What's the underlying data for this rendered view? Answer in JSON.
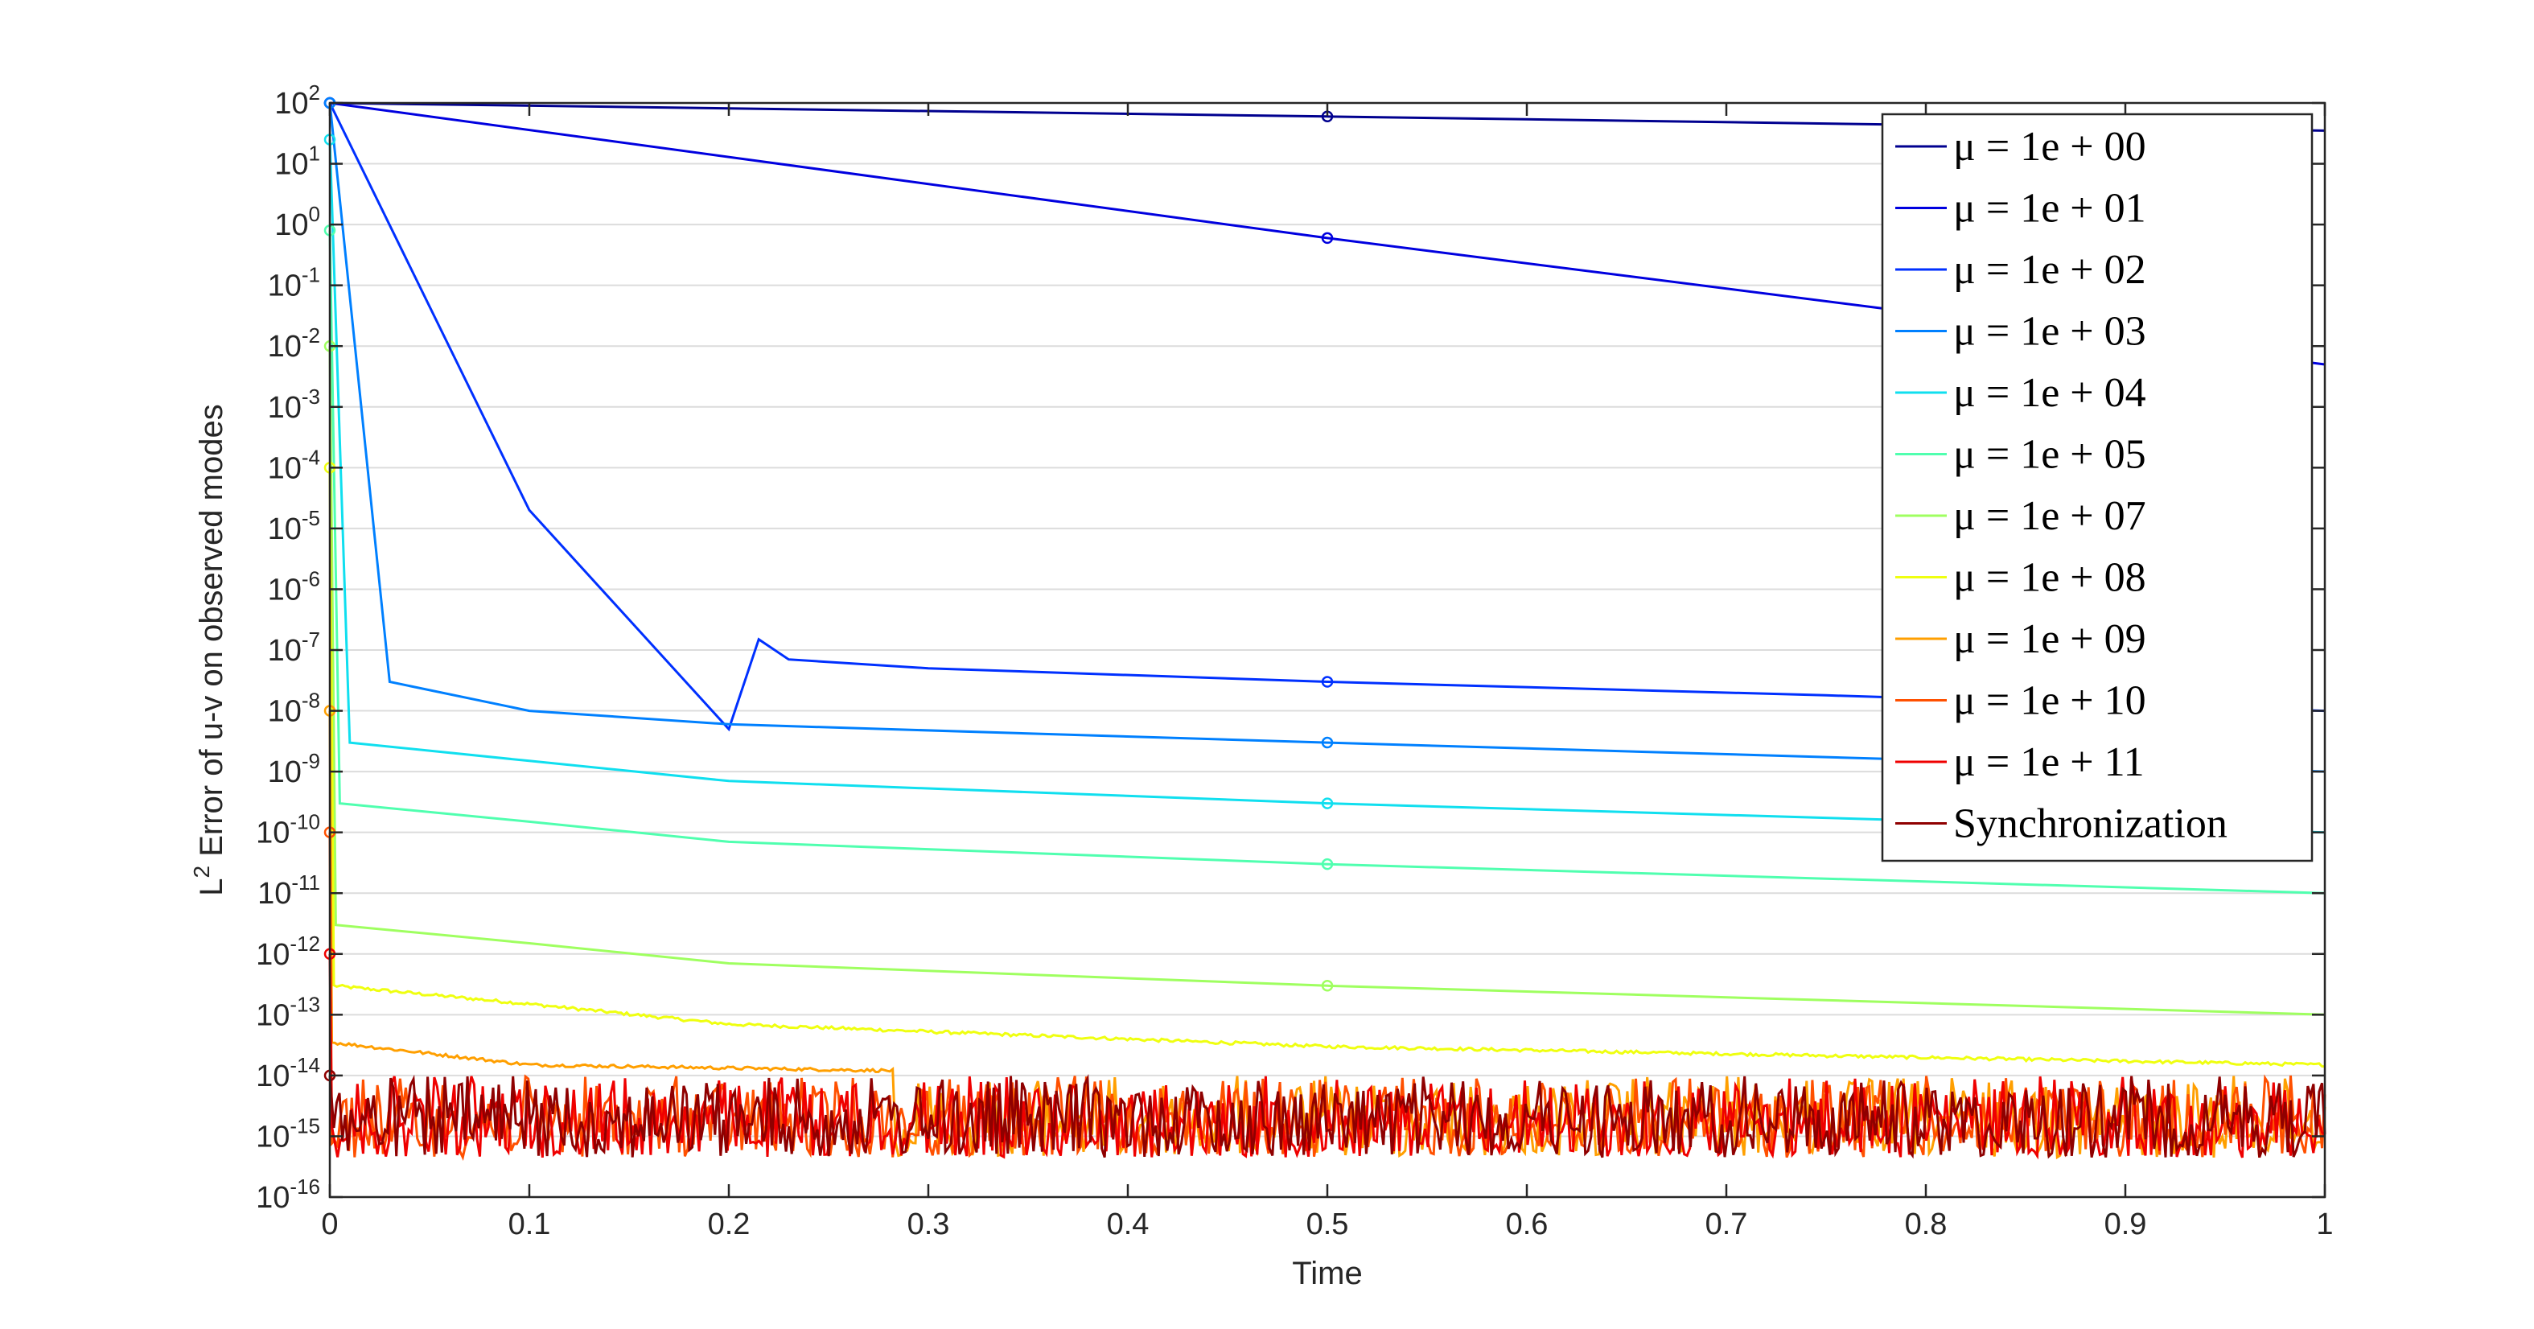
{
  "chart_data": {
    "type": "line",
    "title": "",
    "xlabel": "Time",
    "ylabel_main": "L",
    "ylabel_sup": "2",
    "ylabel_rest": " Error of u-v on observed modes",
    "xlim": [
      0,
      1
    ],
    "ylim_log10": [
      -16,
      2
    ],
    "y_scale": "log",
    "grid": "horizontal",
    "legend_position": "top-right",
    "x_ticks": [
      "0",
      "0.1",
      "0.2",
      "0.3",
      "0.4",
      "0.5",
      "0.6",
      "0.7",
      "0.8",
      "0.9",
      "1"
    ],
    "y_tick_base": "10",
    "y_tick_exponents": [
      "2",
      "1",
      "0",
      "-1",
      "-2",
      "-3",
      "-4",
      "-5",
      "-6",
      "-7",
      "-8",
      "-9",
      "-10",
      "-11",
      "-12",
      "-13",
      "-14",
      "-15",
      "-16"
    ],
    "series": [
      {
        "name": "μ = 1e + 00",
        "color": "#00008F",
        "noisy": false,
        "x": [
          0,
          0.5,
          1
        ],
        "y": [
          100,
          60,
          35
        ]
      },
      {
        "name": "μ = 1e + 01",
        "color": "#0000DF",
        "noisy": false,
        "x": [
          0,
          0.5,
          1
        ],
        "y": [
          100,
          0.6,
          0.005
        ]
      },
      {
        "name": "μ = 1e + 02",
        "color": "#0030FF",
        "noisy": false,
        "x": [
          0,
          0.1,
          0.2,
          0.215,
          0.23,
          0.3,
          0.5,
          0.75,
          1
        ],
        "y": [
          100,
          2e-05,
          5e-09,
          1.5e-07,
          7e-08,
          5e-08,
          3e-08,
          1.8e-08,
          1e-08
        ]
      },
      {
        "name": "μ = 1e + 03",
        "color": "#0080FF",
        "noisy": false,
        "x": [
          0,
          0.03,
          0.1,
          0.2,
          0.5,
          1
        ],
        "y": [
          100,
          3e-08,
          1e-08,
          6e-09,
          3e-09,
          1e-09
        ]
      },
      {
        "name": "μ = 1e + 04",
        "color": "#10DFEF",
        "noisy": false,
        "x": [
          0,
          0.01,
          0.1,
          0.2,
          0.5,
          1
        ],
        "y": [
          25,
          3e-09,
          1.5e-09,
          7e-10,
          3e-10,
          1e-10
        ]
      },
      {
        "name": "μ = 1e + 05",
        "color": "#50FFAF",
        "noisy": false,
        "x": [
          0,
          0.005,
          0.1,
          0.2,
          0.5,
          1
        ],
        "y": [
          0.8,
          3e-10,
          1.5e-10,
          7e-11,
          3e-11,
          1e-11
        ]
      },
      {
        "name": "μ = 1e + 07",
        "color": "#9FFF60",
        "noisy": false,
        "x": [
          0,
          0.003,
          0.1,
          0.2,
          0.5,
          1
        ],
        "y": [
          0.01,
          3e-12,
          1.5e-12,
          7e-13,
          3e-13,
          1e-13
        ]
      },
      {
        "name": "μ = 1e + 08",
        "color": "#EFFF10",
        "noisy": true,
        "x": [
          0,
          0.002,
          0.1,
          0.2,
          0.5,
          1
        ],
        "y": [
          0.0001,
          3e-13,
          1.5e-13,
          7e-14,
          3e-14,
          1.5e-14
        ]
      },
      {
        "name": "μ = 1e + 09",
        "color": "#FF9F00",
        "noisy": true,
        "x": [
          0,
          0.001,
          0.1,
          1
        ],
        "y": [
          1e-08,
          3.5e-14,
          1.5e-14,
          5e-15
        ]
      },
      {
        "name": "μ = 1e + 10",
        "color": "#FF5000",
        "noisy": true,
        "x": [
          0,
          0.001,
          1
        ],
        "y": [
          1e-10,
          1e-14,
          5e-15
        ]
      },
      {
        "name": "μ = 1e + 11",
        "color": "#EF0000",
        "noisy": true,
        "x": [
          0,
          0.001,
          1
        ],
        "y": [
          1e-12,
          1e-14,
          5e-15
        ]
      },
      {
        "name": "Synchronization",
        "color": "#8F0000",
        "noisy": true,
        "x": [
          0,
          0.002,
          1
        ],
        "y": [
          1e-14,
          8e-15,
          5e-15
        ]
      }
    ]
  }
}
